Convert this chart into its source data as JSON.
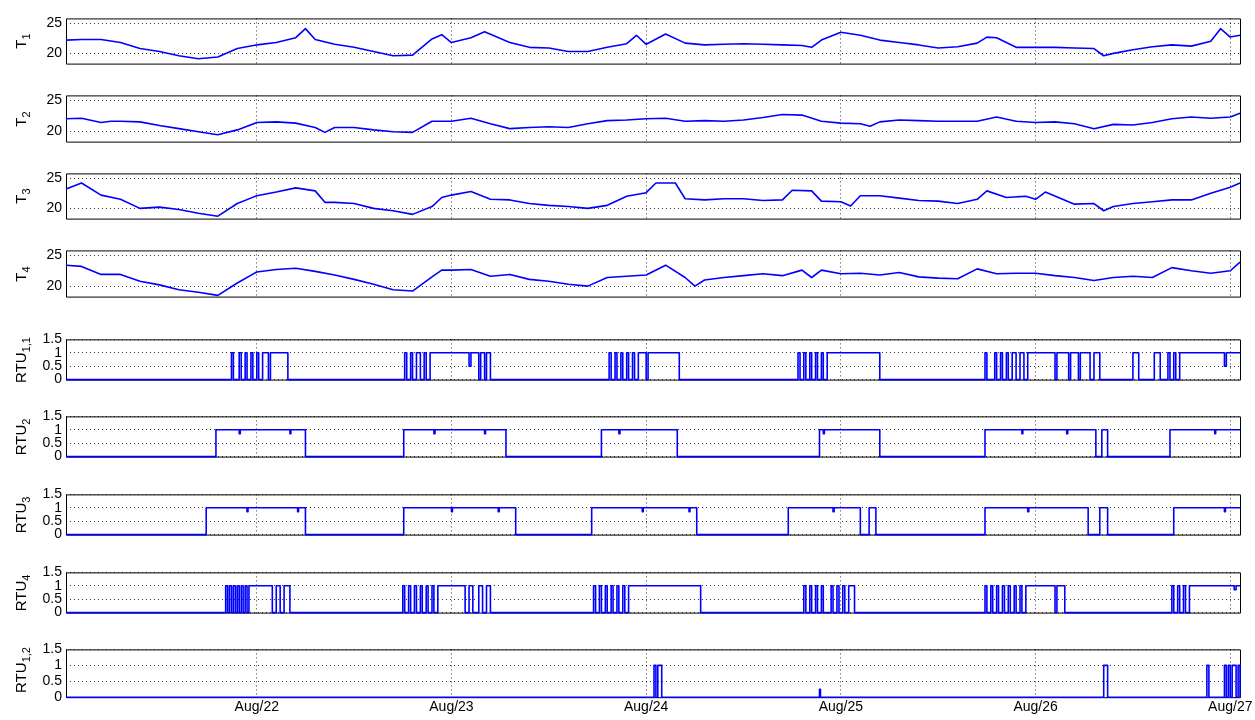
{
  "chart_data": [
    {
      "type": "line",
      "ylabel": "T$_{1}$",
      "color": "#0000ff",
      "grid": true,
      "tick_labels": "y",
      "xlim": [
        "--08-21T00:29",
        "--08-27T01:12"
      ],
      "ylim": [
        18.3,
        25.8
      ],
      "yticks": [
        20,
        25
      ],
      "xticks": [
        "--08-22",
        "--08-23",
        "--08-24",
        "--08-25",
        "--08-26",
        "--08-27"
      ],
      "x": [
        "--08-21T00:29",
        "--08-21T02:24",
        "--08-21T04:48",
        "--08-21T07:12",
        "--08-21T09:36",
        "--08-21T12:00",
        "--08-21T14:24",
        "--08-21T16:48",
        "--08-21T19:12",
        "--08-21T21:36",
        "--08-22T00:00",
        "--08-22T02:24",
        "--08-22T04:48",
        "--08-22T06:00",
        "--08-22T07:12",
        "--08-22T09:36",
        "--08-22T12:00",
        "--08-22T14:24",
        "--08-22T16:48",
        "--08-22T19:12",
        "--08-22T21:36",
        "--08-22T22:48",
        "--08-23T00:00",
        "--08-23T02:24",
        "--08-23T04:05",
        "--08-23T07:12",
        "--08-23T09:36",
        "--08-23T12:00",
        "--08-23T14:24",
        "--08-23T16:48",
        "--08-23T19:12",
        "--08-23T21:36",
        "--08-23T22:48",
        "--08-24T00:00",
        "--08-24T02:24",
        "--08-24T04:48",
        "--08-24T07:12",
        "--08-24T09:36",
        "--08-24T12:00",
        "--08-24T14:24",
        "--08-24T16:48",
        "--08-24T19:12",
        "--08-24T20:24",
        "--08-24T21:36",
        "--08-25T00:00",
        "--08-25T02:24",
        "--08-25T04:48",
        "--08-25T07:12",
        "--08-25T09:36",
        "--08-25T12:00",
        "--08-25T14:24",
        "--08-25T16:48",
        "--08-25T18:00",
        "--08-25T19:12",
        "--08-25T21:36",
        "--08-26T00:00",
        "--08-26T02:24",
        "--08-26T04:48",
        "--08-26T07:12",
        "--08-26T08:24",
        "--08-26T09:36",
        "--08-26T12:00",
        "--08-26T14:24",
        "--08-26T16:48",
        "--08-26T19:12",
        "--08-26T21:36",
        "--08-26T22:48",
        "--08-27T00:00",
        "--08-27T01:12"
      ],
      "values": [
        22.2,
        22.3,
        22.3,
        21.8,
        20.8,
        20.3,
        19.6,
        19.1,
        19.4,
        20.8,
        21.4,
        21.8,
        22.6,
        24.1,
        22.3,
        21.5,
        21.0,
        20.3,
        19.6,
        19.7,
        22.4,
        23.1,
        21.8,
        22.6,
        23.6,
        21.8,
        21.0,
        20.9,
        20.3,
        20.3,
        21.0,
        21.6,
        23.0,
        21.5,
        23.2,
        21.7,
        21.4,
        21.5,
        21.6,
        21.5,
        21.4,
        21.3,
        21.0,
        22.2,
        23.5,
        23.0,
        22.2,
        21.8,
        21.4,
        20.9,
        21.1,
        21.7,
        22.7,
        22.6,
        21.0,
        21.0,
        21.0,
        20.9,
        20.8,
        19.6,
        20.0,
        20.6,
        21.1,
        21.4,
        21.2,
        22.0,
        24.1,
        22.7,
        23.0
      ]
    },
    {
      "type": "line",
      "ylabel": "T$_{2}$",
      "color": "#0000ff",
      "grid": true,
      "tick_labels": "y",
      "xlim": [
        "--08-21T00:29",
        "--08-27T01:12"
      ],
      "ylim": [
        18.3,
        25.8
      ],
      "yticks": [
        20,
        25
      ],
      "xticks": [
        "--08-22",
        "--08-23",
        "--08-24",
        "--08-25",
        "--08-26",
        "--08-27"
      ],
      "x": [
        "--08-21T00:29",
        "--08-21T02:24",
        "--08-21T04:48",
        "--08-21T06:00",
        "--08-21T07:12",
        "--08-21T09:36",
        "--08-21T12:00",
        "--08-21T14:24",
        "--08-21T16:48",
        "--08-21T19:12",
        "--08-21T21:36",
        "--08-22T00:00",
        "--08-22T02:24",
        "--08-22T04:48",
        "--08-22T07:12",
        "--08-22T08:24",
        "--08-22T09:36",
        "--08-22T12:00",
        "--08-22T14:24",
        "--08-22T16:48",
        "--08-22T19:12",
        "--08-22T21:36",
        "--08-23T00:00",
        "--08-23T02:24",
        "--08-23T04:48",
        "--08-23T07:12",
        "--08-23T09:36",
        "--08-23T12:00",
        "--08-23T14:24",
        "--08-23T16:48",
        "--08-23T19:12",
        "--08-23T21:36",
        "--08-24T00:00",
        "--08-24T02:24",
        "--08-24T04:48",
        "--08-24T07:12",
        "--08-24T09:36",
        "--08-24T12:00",
        "--08-24T14:24",
        "--08-24T16:48",
        "--08-24T19:12",
        "--08-24T21:36",
        "--08-25T00:00",
        "--08-25T02:24",
        "--08-25T03:36",
        "--08-25T04:48",
        "--08-25T07:12",
        "--08-25T09:36",
        "--08-25T12:00",
        "--08-25T14:24",
        "--08-25T16:48",
        "--08-25T19:12",
        "--08-25T21:36",
        "--08-26T00:00",
        "--08-26T02:24",
        "--08-26T04:48",
        "--08-26T07:12",
        "--08-26T09:36",
        "--08-26T12:00",
        "--08-26T14:24",
        "--08-26T16:48",
        "--08-26T19:12",
        "--08-26T21:36",
        "--08-27T00:00",
        "--08-27T01:12"
      ],
      "values": [
        22.0,
        22.1,
        21.4,
        21.6,
        21.6,
        21.5,
        20.9,
        20.4,
        19.9,
        19.4,
        20.2,
        21.4,
        21.5,
        21.3,
        20.6,
        19.8,
        20.6,
        20.6,
        20.2,
        19.9,
        19.8,
        21.6,
        21.6,
        22.1,
        21.2,
        20.4,
        20.6,
        20.7,
        20.6,
        21.2,
        21.7,
        21.8,
        22.0,
        22.1,
        21.6,
        21.7,
        21.6,
        21.8,
        22.2,
        22.7,
        22.6,
        21.6,
        21.3,
        21.2,
        20.8,
        21.5,
        21.8,
        21.7,
        21.6,
        21.6,
        21.6,
        22.3,
        21.6,
        21.4,
        21.5,
        21.2,
        20.4,
        21.1,
        21.0,
        21.4,
        22.0,
        22.3,
        22.1,
        22.3,
        22.9
      ]
    },
    {
      "type": "line",
      "ylabel": "T$_{3}$",
      "color": "#0000ff",
      "grid": true,
      "tick_labels": "y",
      "xlim": [
        "--08-21T00:29",
        "--08-27T01:12"
      ],
      "ylim": [
        18.3,
        25.8
      ],
      "yticks": [
        20,
        25
      ],
      "xticks": [
        "--08-22",
        "--08-23",
        "--08-24",
        "--08-25",
        "--08-26",
        "--08-27"
      ],
      "x": [
        "--08-21T00:29",
        "--08-21T02:24",
        "--08-21T04:48",
        "--08-21T07:12",
        "--08-21T09:36",
        "--08-21T12:00",
        "--08-21T14:24",
        "--08-21T16:48",
        "--08-21T19:12",
        "--08-21T21:36",
        "--08-22T00:00",
        "--08-22T02:24",
        "--08-22T04:48",
        "--08-22T07:12",
        "--08-22T08:24",
        "--08-22T09:36",
        "--08-22T12:00",
        "--08-22T14:24",
        "--08-22T16:48",
        "--08-22T19:12",
        "--08-22T21:36",
        "--08-22T22:48",
        "--08-23T00:00",
        "--08-23T02:24",
        "--08-23T04:48",
        "--08-23T07:12",
        "--08-23T09:36",
        "--08-23T12:00",
        "--08-23T14:24",
        "--08-23T16:48",
        "--08-23T19:12",
        "--08-23T21:36",
        "--08-24T00:00",
        "--08-24T01:12",
        "--08-24T03:36",
        "--08-24T04:48",
        "--08-24T07:12",
        "--08-24T09:36",
        "--08-24T12:00",
        "--08-24T14:24",
        "--08-24T16:48",
        "--08-24T18:00",
        "--08-24T20:24",
        "--08-24T21:36",
        "--08-25T00:00",
        "--08-25T01:12",
        "--08-25T02:24",
        "--08-25T04:48",
        "--08-25T07:12",
        "--08-25T09:36",
        "--08-25T12:00",
        "--08-25T14:24",
        "--08-25T16:48",
        "--08-25T18:00",
        "--08-25T20:24",
        "--08-25T22:48",
        "--08-26T00:00",
        "--08-26T01:12",
        "--08-26T04:48",
        "--08-26T07:12",
        "--08-26T08:24",
        "--08-26T09:36",
        "--08-26T12:00",
        "--08-26T14:24",
        "--08-26T16:48",
        "--08-26T19:12",
        "--08-26T21:36",
        "--08-27T00:00",
        "--08-27T01:12"
      ],
      "values": [
        23.2,
        24.2,
        22.2,
        21.5,
        20.0,
        20.2,
        19.8,
        19.2,
        18.7,
        20.8,
        22.1,
        22.7,
        23.4,
        22.9,
        21.0,
        21.0,
        20.8,
        20.0,
        19.6,
        19.0,
        20.3,
        21.8,
        22.2,
        22.8,
        21.5,
        21.4,
        20.8,
        20.5,
        20.3,
        20.0,
        20.5,
        22.0,
        22.6,
        24.2,
        24.2,
        21.6,
        21.4,
        21.6,
        21.6,
        21.3,
        21.4,
        23.0,
        22.9,
        21.2,
        21.1,
        20.4,
        22.1,
        22.1,
        21.7,
        21.3,
        21.2,
        20.8,
        21.5,
        22.9,
        21.8,
        22.0,
        21.5,
        22.7,
        20.7,
        20.8,
        19.6,
        20.3,
        20.8,
        21.1,
        21.4,
        21.4,
        22.5,
        23.5,
        24.2
      ]
    },
    {
      "type": "line",
      "ylabel": "T$_{4}$",
      "color": "#0000ff",
      "grid": true,
      "tick_labels": "y",
      "xlim": [
        "--08-21T00:29",
        "--08-27T01:12"
      ],
      "ylim": [
        18.3,
        25.8
      ],
      "yticks": [
        20,
        25
      ],
      "xticks": [
        "--08-22",
        "--08-23",
        "--08-24",
        "--08-25",
        "--08-26",
        "--08-27"
      ],
      "x": [
        "--08-21T00:29",
        "--08-21T02:24",
        "--08-21T04:48",
        "--08-21T07:12",
        "--08-21T09:36",
        "--08-21T12:00",
        "--08-21T14:24",
        "--08-21T16:48",
        "--08-21T19:12",
        "--08-21T21:36",
        "--08-22T00:00",
        "--08-22T02:24",
        "--08-22T04:48",
        "--08-22T07:12",
        "--08-22T09:36",
        "--08-22T12:00",
        "--08-22T14:24",
        "--08-22T16:48",
        "--08-22T19:12",
        "--08-22T21:36",
        "--08-22T22:48",
        "--08-23T00:00",
        "--08-23T02:24",
        "--08-23T04:48",
        "--08-23T07:12",
        "--08-23T09:36",
        "--08-23T12:00",
        "--08-23T14:24",
        "--08-23T16:48",
        "--08-23T19:12",
        "--08-23T21:36",
        "--08-24T00:00",
        "--08-24T02:24",
        "--08-24T04:48",
        "--08-24T06:00",
        "--08-24T07:12",
        "--08-24T09:36",
        "--08-24T12:00",
        "--08-24T14:24",
        "--08-24T16:48",
        "--08-24T19:12",
        "--08-24T20:24",
        "--08-24T21:36",
        "--08-25T00:00",
        "--08-25T02:24",
        "--08-25T04:48",
        "--08-25T07:12",
        "--08-25T09:36",
        "--08-25T12:00",
        "--08-25T14:24",
        "--08-25T16:48",
        "--08-25T19:12",
        "--08-25T21:36",
        "--08-26T00:00",
        "--08-26T02:24",
        "--08-26T04:48",
        "--08-26T07:12",
        "--08-26T09:36",
        "--08-26T12:00",
        "--08-26T14:24",
        "--08-26T16:48",
        "--08-26T19:12",
        "--08-26T21:36",
        "--08-27T00:00",
        "--08-27T01:12"
      ],
      "values": [
        23.4,
        23.2,
        21.9,
        21.9,
        20.8,
        20.2,
        19.4,
        19.0,
        18.5,
        20.5,
        22.3,
        22.7,
        22.9,
        22.4,
        21.8,
        21.1,
        20.3,
        19.4,
        19.2,
        21.5,
        22.6,
        22.6,
        22.7,
        21.6,
        21.9,
        21.1,
        20.8,
        20.3,
        20.0,
        21.4,
        21.6,
        21.8,
        23.4,
        21.4,
        20.0,
        21.0,
        21.4,
        21.7,
        22.0,
        21.7,
        22.6,
        21.4,
        22.6,
        22.0,
        22.1,
        21.8,
        22.2,
        21.5,
        21.3,
        21.2,
        22.8,
        22.0,
        22.1,
        22.1,
        21.7,
        21.4,
        20.9,
        21.4,
        21.6,
        21.4,
        23.0,
        22.5,
        22.1,
        22.5,
        23.9
      ]
    },
    {
      "type": "step",
      "ylabel": "RTU$_{1,1}$",
      "color": "#0000ff",
      "grid": true,
      "tick_labels": "y",
      "xlim": [
        "--08-21T00:29",
        "--08-27T01:12"
      ],
      "ylim": [
        0,
        1.5
      ],
      "yticks": [
        0,
        0.5,
        1,
        1.5
      ],
      "xticks": [
        "--08-22",
        "--08-23",
        "--08-24",
        "--08-25",
        "--08-26",
        "--08-27"
      ],
      "x": [
        "--08-21T00:29",
        "--08-21T20:53",
        "--08-21T21:07",
        "--08-21T21:50",
        "--08-21T22:05",
        "--08-21T22:34",
        "--08-21T22:48",
        "--08-21T23:17",
        "--08-21T23:31",
        "--08-22T00:00",
        "--08-22T00:14",
        "--08-22T00:43",
        "--08-22T01:26",
        "--08-22T01:41",
        "--08-22T03:50",
        "--08-22T18:14",
        "--08-22T18:29",
        "--08-22T18:58",
        "--08-22T19:12",
        "--08-22T19:41",
        "--08-22T20:10",
        "--08-22T20:38",
        "--08-22T20:53",
        "--08-22T21:22",
        "--08-23T02:10",
        "--08-23T02:24",
        "--08-23T03:22",
        "--08-23T03:36",
        "--08-23T04:05",
        "--08-23T04:19",
        "--08-23T04:48",
        "--08-23T19:26",
        "--08-23T19:41",
        "--08-23T20:10",
        "--08-23T20:24",
        "--08-23T20:53",
        "--08-23T21:07",
        "--08-23T21:36",
        "--08-23T21:50",
        "--08-23T22:19",
        "--08-23T22:34",
        "--08-23T23:02",
        "--08-24T00:00",
        "--08-24T00:14",
        "--08-24T04:05",
        "--08-24T18:43",
        "--08-24T18:58",
        "--08-24T19:26",
        "--08-24T19:41",
        "--08-24T20:10",
        "--08-24T20:24",
        "--08-24T20:53",
        "--08-24T21:07",
        "--08-24T21:36",
        "--08-24T21:50",
        "--08-24T22:19",
        "--08-25T04:48",
        "--08-25T17:46",
        "--08-25T18:00",
        "--08-25T18:58",
        "--08-25T19:12",
        "--08-25T19:41",
        "--08-25T19:55",
        "--08-25T20:24",
        "--08-25T20:38",
        "--08-25T21:07",
        "--08-25T21:36",
        "--08-25T22:05",
        "--08-25T22:34",
        "--08-25T23:02",
        "--08-26T02:24",
        "--08-26T02:38",
        "--08-26T04:05",
        "--08-26T04:19",
        "--08-26T05:17",
        "--08-26T05:31",
        "--08-26T06:43",
        "--08-26T07:12",
        "--08-26T07:55",
        "--08-26T12:00",
        "--08-26T12:43",
        "--08-26T14:38",
        "--08-26T15:22",
        "--08-26T16:19",
        "--08-26T16:34",
        "--08-26T17:02",
        "--08-26T17:17",
        "--08-26T17:46",
        "--08-26T23:17",
        "--08-26T23:31",
        "--08-27T01:12"
      ],
      "values": [
        0,
        1,
        0,
        1,
        0,
        1,
        0,
        1,
        0,
        1,
        0,
        1,
        0,
        1,
        0,
        1,
        0,
        1,
        0,
        1,
        0,
        1,
        0,
        1,
        0.5,
        1,
        0,
        1,
        0,
        1,
        0,
        1,
        0,
        1,
        0,
        1,
        0,
        1,
        0,
        1,
        0,
        1,
        0,
        1,
        0,
        1,
        0,
        1,
        0,
        1,
        0,
        1,
        0,
        1,
        0,
        1,
        0,
        1,
        0,
        1,
        0,
        1,
        0,
        1,
        0,
        1,
        0,
        1,
        0,
        1,
        0,
        1,
        0,
        1,
        0,
        1,
        0,
        1,
        0,
        1,
        0,
        1,
        0,
        1,
        0,
        1,
        0,
        1,
        0.5,
        1,
        1
      ]
    },
    {
      "type": "step",
      "ylabel": "RTU$_{2}$",
      "color": "#0000ff",
      "grid": true,
      "tick_labels": "y",
      "xlim": [
        "--08-21T00:29",
        "--08-27T01:12"
      ],
      "ylim": [
        0,
        1.5
      ],
      "yticks": [
        0,
        0.5,
        1,
        1.5
      ],
      "xticks": [
        "--08-22",
        "--08-23",
        "--08-24",
        "--08-25",
        "--08-26",
        "--08-27"
      ],
      "x": [
        "--08-21T00:29",
        "--08-21T18:58",
        "--08-21T21:50",
        "--08-21T21:58",
        "--08-22T04:05",
        "--08-22T04:12",
        "--08-22T06:00",
        "--08-22T18:07",
        "--08-22T21:50",
        "--08-22T21:58",
        "--08-23T04:05",
        "--08-23T04:12",
        "--08-23T06:43",
        "--08-23T18:29",
        "--08-23T20:38",
        "--08-23T20:46",
        "--08-24T03:50",
        "--08-24T21:22",
        "--08-24T21:50",
        "--08-24T21:58",
        "--08-25T04:48",
        "--08-25T17:46",
        "--08-25T22:19",
        "--08-25T22:26",
        "--08-26T03:50",
        "--08-26T03:58",
        "--08-26T07:26",
        "--08-26T08:10",
        "--08-26T08:53",
        "--08-26T16:34",
        "--08-26T22:05",
        "--08-26T22:12",
        "--08-27T01:12"
      ],
      "values": [
        0,
        1,
        0.85,
        1,
        0.85,
        1,
        0,
        1,
        0.85,
        1,
        0.85,
        1,
        0,
        1,
        0.85,
        1,
        0,
        1,
        0.85,
        1,
        0,
        1,
        0.85,
        1,
        0.85,
        1,
        0,
        1,
        0,
        1,
        0.85,
        1,
        1
      ]
    },
    {
      "type": "step",
      "ylabel": "RTU$_{3}$",
      "color": "#0000ff",
      "grid": true,
      "tick_labels": "y",
      "xlim": [
        "--08-21T00:29",
        "--08-27T01:12"
      ],
      "ylim": [
        0,
        1.5
      ],
      "yticks": [
        0,
        0.5,
        1,
        1.5
      ],
      "xticks": [
        "--08-22",
        "--08-23",
        "--08-24",
        "--08-25",
        "--08-26",
        "--08-27"
      ],
      "x": [
        "--08-21T00:29",
        "--08-21T17:46",
        "--08-21T22:48",
        "--08-21T22:55",
        "--08-22T05:02",
        "--08-22T05:09",
        "--08-22T06:00",
        "--08-22T18:07",
        "--08-23T00:00",
        "--08-23T00:07",
        "--08-23T05:46",
        "--08-23T05:53",
        "--08-23T07:55",
        "--08-23T17:17",
        "--08-23T23:31",
        "--08-23T23:38",
        "--08-24T05:17",
        "--08-24T05:24",
        "--08-24T06:14",
        "--08-24T17:31",
        "--08-24T23:02",
        "--08-24T23:10",
        "--08-25T02:24",
        "--08-25T03:29",
        "--08-25T04:19",
        "--08-25T17:46",
        "--08-25T23:02",
        "--08-25T23:10",
        "--08-26T06:29",
        "--08-26T07:55",
        "--08-26T08:53",
        "--08-26T17:02",
        "--08-26T23:17",
        "--08-26T23:24",
        "--08-27T01:12"
      ],
      "values": [
        0,
        1,
        0.85,
        1,
        0.85,
        1,
        0,
        1,
        0.85,
        1,
        0.85,
        1,
        0,
        1,
        0.85,
        1,
        0.85,
        1,
        0,
        1,
        0.85,
        1,
        0,
        1,
        0,
        1,
        0.85,
        1,
        0,
        1,
        0,
        1,
        0.85,
        1,
        1
      ]
    },
    {
      "type": "step",
      "ylabel": "RTU$_{4}$",
      "color": "#0000ff",
      "grid": true,
      "tick_labels": "y",
      "xlim": [
        "--08-21T00:29",
        "--08-27T01:12"
      ],
      "ylim": [
        0,
        1.5
      ],
      "yticks": [
        0,
        0.5,
        1,
        1.5
      ],
      "xticks": [
        "--08-22",
        "--08-23",
        "--08-24",
        "--08-25",
        "--08-26",
        "--08-27"
      ],
      "x": [
        "--08-21T00:29",
        "--08-21T20:10",
        "--08-21T20:24",
        "--08-21T20:38",
        "--08-21T20:53",
        "--08-21T21:07",
        "--08-21T21:22",
        "--08-21T21:36",
        "--08-21T21:50",
        "--08-21T22:05",
        "--08-21T22:19",
        "--08-21T22:34",
        "--08-21T22:48",
        "--08-21T23:02",
        "--08-22T01:55",
        "--08-22T02:24",
        "--08-22T02:53",
        "--08-22T03:22",
        "--08-22T04:05",
        "--08-22T18:00",
        "--08-22T18:14",
        "--08-22T18:43",
        "--08-22T18:58",
        "--08-22T19:26",
        "--08-22T19:41",
        "--08-22T20:10",
        "--08-22T20:24",
        "--08-22T20:53",
        "--08-22T21:07",
        "--08-22T21:36",
        "--08-22T21:50",
        "--08-22T22:19",
        "--08-23T01:41",
        "--08-23T02:10",
        "--08-23T02:38",
        "--08-23T03:22",
        "--08-23T03:50",
        "--08-23T04:19",
        "--08-23T04:48",
        "--08-23T17:31",
        "--08-23T17:46",
        "--08-23T18:14",
        "--08-23T18:29",
        "--08-23T18:58",
        "--08-23T19:12",
        "--08-23T19:41",
        "--08-23T19:55",
        "--08-23T20:24",
        "--08-23T20:38",
        "--08-23T21:07",
        "--08-23T21:22",
        "--08-23T21:50",
        "--08-24T06:43",
        "--08-24T19:26",
        "--08-24T19:41",
        "--08-24T20:10",
        "--08-24T20:24",
        "--08-24T20:53",
        "--08-24T21:07",
        "--08-24T21:36",
        "--08-24T21:50",
        "--08-24T22:48",
        "--08-24T23:02",
        "--08-24T23:31",
        "--08-24T23:46",
        "--08-25T00:14",
        "--08-25T00:29",
        "--08-25T00:58",
        "--08-25T01:41",
        "--08-25T17:46",
        "--08-25T18:00",
        "--08-25T18:29",
        "--08-25T18:43",
        "--08-25T19:12",
        "--08-25T19:26",
        "--08-25T19:55",
        "--08-25T20:10",
        "--08-25T20:38",
        "--08-25T20:53",
        "--08-25T21:22",
        "--08-25T21:36",
        "--08-25T22:05",
        "--08-25T22:19",
        "--08-25T22:48",
        "--08-26T02:24",
        "--08-26T02:38",
        "--08-26T03:36",
        "--08-26T16:48",
        "--08-26T17:02",
        "--08-26T17:31",
        "--08-26T17:46",
        "--08-26T18:14",
        "--08-26T18:29",
        "--08-26T18:58",
        "--08-27T00:29",
        "--08-27T00:43",
        "--08-27T01:12"
      ],
      "values": [
        0,
        1,
        0,
        1,
        0,
        1,
        0,
        1,
        0,
        1,
        0,
        1,
        0,
        1,
        0,
        1,
        0,
        1,
        0,
        1,
        0,
        1,
        0,
        1,
        0,
        1,
        0,
        1,
        0,
        1,
        0,
        1,
        0,
        1,
        0,
        1,
        0,
        1,
        0,
        1,
        0,
        1,
        0,
        1,
        0,
        1,
        0,
        1,
        0,
        1,
        0,
        1,
        0,
        1,
        0,
        1,
        0,
        1,
        0,
        1,
        0,
        1,
        0,
        1,
        0,
        1,
        0,
        1,
        0,
        1,
        0,
        1,
        0,
        1,
        0,
        1,
        0,
        1,
        0,
        1,
        0,
        1,
        0,
        1,
        0,
        1,
        0,
        1,
        0,
        1,
        0,
        1,
        0,
        1,
        0.85,
        1,
        1
      ]
    },
    {
      "type": "step",
      "ylabel": "RTU$_{1,2}$",
      "color": "#0000ff",
      "grid": true,
      "xlim": [
        "--08-21T00:29",
        "--08-27T01:12"
      ],
      "ylim": [
        0,
        1.5
      ],
      "yticks": [
        0,
        0.5,
        1,
        1.5
      ],
      "xticks": [
        {
          "value": "--08-22",
          "label": "Aug/22"
        },
        {
          "value": "--08-23",
          "label": "Aug/23"
        },
        {
          "value": "--08-24",
          "label": "Aug/24"
        },
        {
          "value": "--08-25",
          "label": "Aug/25"
        },
        {
          "value": "--08-26",
          "label": "Aug/26"
        },
        {
          "value": "--08-27",
          "label": "Aug/27"
        }
      ],
      "x": [
        "--08-21T00:29",
        "--08-24T00:58",
        "--08-24T01:12",
        "--08-24T01:26",
        "--08-24T01:55",
        "--08-24T21:22",
        "--08-24T21:29",
        "--08-26T08:24",
        "--08-26T08:53",
        "--08-26T21:07",
        "--08-26T21:22",
        "--08-26T23:17",
        "--08-26T23:31",
        "--08-26T23:46",
        "--08-27T00:00",
        "--08-27T00:14",
        "--08-27T00:43",
        "--08-27T00:58",
        "--08-27T01:12"
      ],
      "values": [
        0,
        1,
        0,
        1,
        0,
        0.25,
        0,
        1,
        0,
        1,
        0,
        1,
        0,
        1,
        0,
        1,
        0,
        1,
        0
      ]
    }
  ]
}
